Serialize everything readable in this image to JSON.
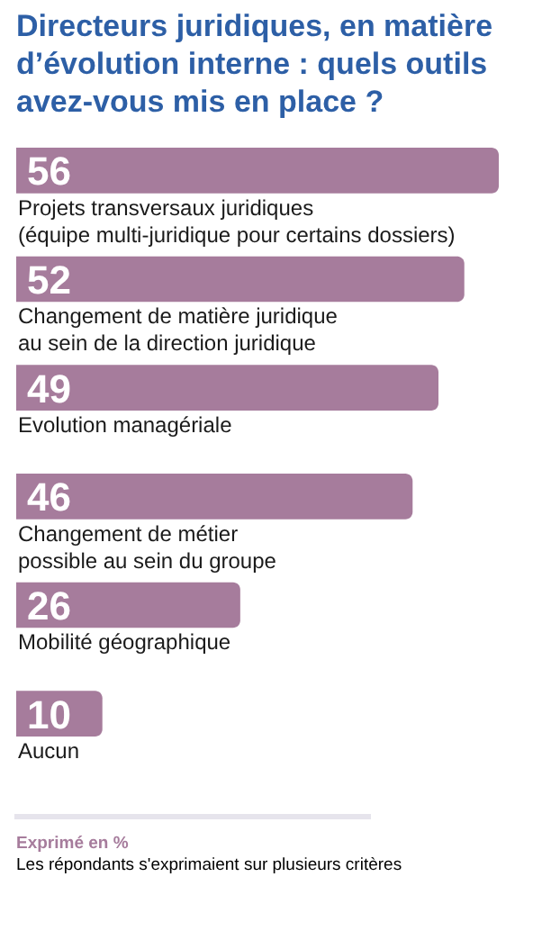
{
  "chart_data": {
    "type": "bar",
    "orientation": "horizontal",
    "title": "Directeurs juridiques, en matière\nd’évolution interne : quels outils\navez-vous mis en place ?",
    "categories": [
      "Projets transversaux juridiques\n(équipe multi-juridique pour certains dossiers)",
      "Changement de matière juridique\nau sein de la direction juridique",
      "Evolution managériale",
      "Changement de métier\npossible au sein du groupe",
      "Mobilité géographique",
      "Aucun"
    ],
    "values": [
      56,
      52,
      49,
      46,
      26,
      10
    ],
    "color": "#a67c9c",
    "data_labels": true,
    "annotations": [
      "Exprimé en %",
      "Les répondants s'exprimaient sur plusieurs critères"
    ]
  }
}
